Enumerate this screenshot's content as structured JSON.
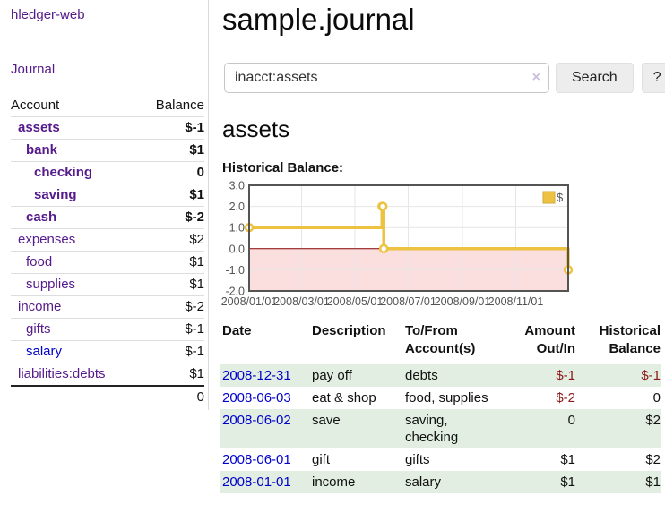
{
  "sidebar": {
    "brand": "hledger-web",
    "journal_link": "Journal",
    "headers": {
      "account": "Account",
      "balance": "Balance"
    },
    "accounts": [
      {
        "name": "assets",
        "balance": "$-1",
        "depth": 1,
        "bold": true,
        "bal_color": "neg-strong",
        "link_color": "purple"
      },
      {
        "name": "bank",
        "balance": "$1",
        "depth": 2,
        "bold": true,
        "bal_color": "pos",
        "link_color": "purple"
      },
      {
        "name": "checking",
        "balance": "0",
        "depth": 3,
        "bold": true,
        "bal_color": "pos",
        "link_color": "purple"
      },
      {
        "name": "saving",
        "balance": "$1",
        "depth": 3,
        "bold": true,
        "bal_color": "pos",
        "link_color": "purple"
      },
      {
        "name": "cash",
        "balance": "$-2",
        "depth": 2,
        "bold": true,
        "bal_color": "neg-strong",
        "link_color": "purple"
      },
      {
        "name": "expenses",
        "balance": "$2",
        "depth": 1,
        "bold": false,
        "bal_color": "pos",
        "link_color": "purple"
      },
      {
        "name": "food",
        "balance": "$1",
        "depth": 2,
        "bold": false,
        "bal_color": "pos",
        "link_color": "purple"
      },
      {
        "name": "supplies",
        "balance": "$1",
        "depth": 2,
        "bold": false,
        "bal_color": "pos",
        "link_color": "purple"
      },
      {
        "name": "income",
        "balance": "$-2",
        "depth": 1,
        "bold": false,
        "bal_color": "neg-weak",
        "link_color": "purple"
      },
      {
        "name": "gifts",
        "balance": "$-1",
        "depth": 2,
        "bold": false,
        "bal_color": "neg-weak",
        "link_color": "purple"
      },
      {
        "name": "salary",
        "balance": "$-1",
        "depth": 2,
        "bold": false,
        "bal_color": "neg-weak",
        "link_color": "blue"
      },
      {
        "name": "liabilities:debts",
        "balance": "$1",
        "depth": 1,
        "bold": false,
        "bal_color": "pos",
        "link_color": "purple"
      }
    ],
    "total": "0"
  },
  "header": {
    "title": "sample.journal"
  },
  "search": {
    "value": "inacct:assets",
    "clear_icon": "×",
    "search_button": "Search",
    "help_button": "?"
  },
  "account_page": {
    "heading": "assets",
    "chart_title": "Historical Balance:"
  },
  "chart_data": {
    "type": "line",
    "step": true,
    "title": "Historical Balance",
    "series": [
      {
        "name": "$",
        "color": "#edc240",
        "points": [
          [
            "2008-01-01",
            1
          ],
          [
            "2008-06-01",
            2
          ],
          [
            "2008-06-02",
            2
          ],
          [
            "2008-06-03",
            0
          ],
          [
            "2008-12-31",
            -1
          ]
        ]
      }
    ],
    "ylim": [
      -2,
      3
    ],
    "ytick_values": [
      3,
      2,
      1,
      0,
      -1,
      -2
    ],
    "ytick_labels": [
      "3.0",
      "2.0",
      "1.0",
      "0.0",
      "-1.0",
      "-2.0"
    ],
    "xtick_labels": [
      "2008/01/01",
      "2008/03/01",
      "2008/05/01",
      "2008/07/01",
      "2008/09/01",
      "2008/11/01"
    ],
    "x_range": [
      "2008-01-01",
      "2008-12-31"
    ],
    "legend": {
      "label": "$",
      "position": "top-right"
    },
    "grid": true,
    "negative_fill": "#fbdede",
    "zero_line_color": "#8b0000",
    "border_color": "#545454",
    "gridline_color": "#e6e6e6",
    "tick_color": "#545454"
  },
  "register": {
    "headers": {
      "date": "Date",
      "sort_icon": "∧",
      "description": "Description",
      "accounts": "To/From Account(s)",
      "amount": "Amount Out/In",
      "balance": "Historical Balance"
    },
    "rows": [
      {
        "date": "2008-12-31",
        "description": "pay off",
        "accounts": "debts",
        "amount": "$-1",
        "amount_neg": true,
        "balance": "$-1",
        "balance_neg": true
      },
      {
        "date": "2008-06-03",
        "description": "eat & shop",
        "accounts": "food, supplies",
        "amount": "$-2",
        "amount_neg": true,
        "balance": "0",
        "balance_neg": false
      },
      {
        "date": "2008-06-02",
        "description": "save",
        "accounts": "saving, checking",
        "amount": "0",
        "amount_neg": false,
        "balance": "$2",
        "balance_neg": false
      },
      {
        "date": "2008-06-01",
        "description": "gift",
        "accounts": "gifts",
        "amount": "$1",
        "amount_neg": false,
        "balance": "$2",
        "balance_neg": false
      },
      {
        "date": "2008-01-01",
        "description": "income",
        "accounts": "salary",
        "amount": "$1",
        "amount_neg": false,
        "balance": "$1",
        "balance_neg": false
      }
    ]
  },
  "colors": {
    "link_purple": "#551a8b",
    "link_blue": "#0000cc",
    "negative_strong": "#8b1a1a",
    "negative_weak": "#c26b6b",
    "row_green": "#e1eee1",
    "series_yellow": "#edc240"
  }
}
